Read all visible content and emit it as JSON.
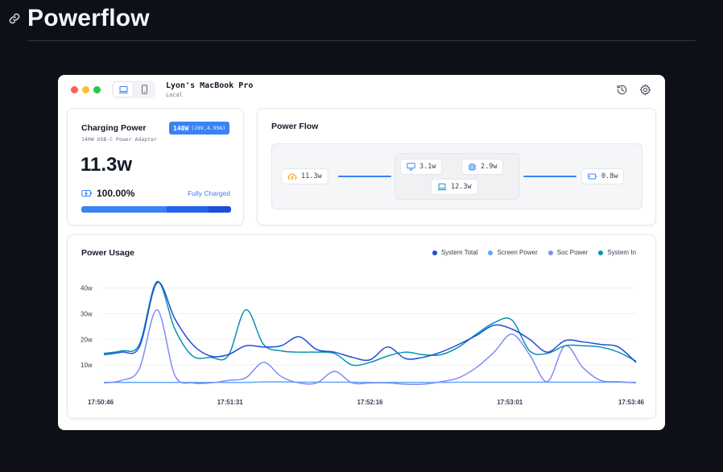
{
  "page": {
    "title": "Powerflow"
  },
  "window": {
    "device_name": "Lyon's MacBook Pro",
    "device_location": "Local",
    "device_modes": [
      "laptop-icon",
      "phone-icon"
    ],
    "toolbar_icons": [
      "history-icon",
      "gear-icon"
    ]
  },
  "charging": {
    "title": "Charging Power",
    "adapter_watts": "140W",
    "adapter_detail": "(28V,4.99A)",
    "adapter_name": "140W USB-C Power Adapter",
    "power": "11.3w",
    "battery_percent": "100.00%",
    "status": "Fully Charged",
    "progress_fraction": 1.0,
    "progress_colors": [
      "#3b82f6",
      "#2563eb",
      "#1d4ed8"
    ]
  },
  "flow": {
    "title": "Power Flow",
    "input": "11.3w",
    "screen": "3.1w",
    "soc": "2.9w",
    "system": "12.3w",
    "battery": "0.8w",
    "line_color": "#3b82f6"
  },
  "usage": {
    "title": "Power Usage",
    "legend": [
      {
        "label": "System Total",
        "color": "#1d4ed8"
      },
      {
        "label": "Screen Power",
        "color": "#60a5fa"
      },
      {
        "label": "Soc Power",
        "color": "#818cf8"
      },
      {
        "label": "System In",
        "color": "#0891b2"
      }
    ]
  },
  "chart_data": {
    "type": "line",
    "title": "Power Usage",
    "xlabel": "",
    "ylabel": "",
    "ylim": [
      0,
      48
    ],
    "yticks": [
      "10w",
      "20w",
      "30w",
      "40w"
    ],
    "xticks": [
      "17:50:46",
      "17:51:31",
      "17:52:16",
      "17:53:01",
      "17:53:46"
    ],
    "grid": true,
    "legend_position": "top-right",
    "x": [
      0,
      6,
      12,
      18,
      24,
      30,
      36,
      42,
      48,
      54,
      60,
      66,
      72,
      78,
      84,
      90,
      96,
      102,
      108,
      114,
      120,
      126,
      132,
      138,
      144,
      150,
      156,
      162,
      168,
      174,
      180
    ],
    "series": [
      {
        "name": "System Total",
        "color": "#1d4ed8",
        "values": [
          14,
          15,
          17,
          42,
          28,
          18,
          13.5,
          14,
          17.5,
          17,
          17.5,
          21,
          16,
          15,
          13,
          12,
          17,
          12.5,
          13,
          15,
          18,
          21.5,
          25.5,
          24,
          20,
          15,
          19.5,
          19,
          18,
          17,
          11
        ]
      },
      {
        "name": "Screen Power",
        "color": "#60a5fa",
        "values": [
          3.2,
          3.2,
          3.2,
          3.2,
          3.2,
          3.2,
          3.2,
          3.2,
          3.2,
          3.4,
          3.4,
          3.3,
          3.3,
          3.3,
          3.3,
          3.2,
          3.2,
          3.2,
          3.2,
          3.2,
          3.3,
          3.3,
          3.3,
          3.3,
          3.3,
          3.3,
          3.3,
          3.3,
          3.3,
          3.3,
          3.2
        ]
      },
      {
        "name": "Soc Power",
        "color": "#818cf8",
        "values": [
          3,
          4,
          8.5,
          31.5,
          6,
          3,
          3,
          4,
          5,
          11,
          5.5,
          3,
          3,
          7.5,
          3,
          3,
          3,
          2.5,
          2.5,
          3.5,
          5,
          9,
          15,
          22,
          14,
          3.5,
          17.5,
          9,
          4,
          3.5,
          3
        ]
      },
      {
        "name": "System In",
        "color": "#0891b2",
        "values": [
          14.5,
          15.5,
          18,
          42.5,
          24,
          13.5,
          13,
          13.5,
          31.5,
          18,
          15.5,
          15,
          15,
          14.5,
          10,
          11,
          13.5,
          15,
          14,
          14,
          17,
          22,
          26.5,
          27.5,
          15.5,
          14.5,
          17.5,
          17.5,
          17,
          15,
          11.5
        ]
      }
    ]
  }
}
